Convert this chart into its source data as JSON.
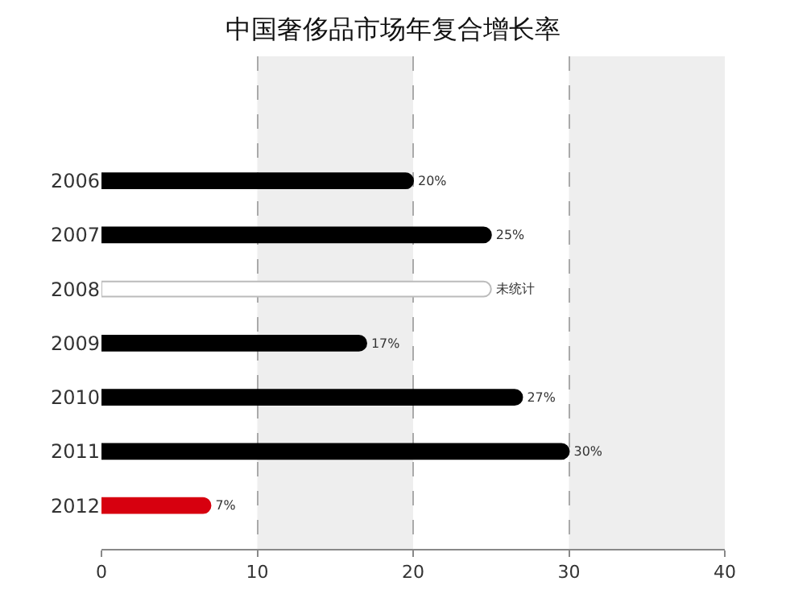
{
  "chart_data": {
    "type": "bar",
    "orientation": "horizontal",
    "title": "中国奢侈品市场年复合增长率",
    "categories": [
      "2006",
      "2007",
      "2008",
      "2009",
      "2010",
      "2011",
      "2012"
    ],
    "values": [
      20,
      25,
      25,
      17,
      27,
      30,
      7
    ],
    "colors": [
      "#000000",
      "#000000",
      "#ffffff",
      "#000000",
      "#000000",
      "#000000",
      "#d7000f"
    ],
    "value_labels": [
      "20%",
      "25%",
      "未统计",
      "17%",
      "27%",
      "30%",
      "7%"
    ],
    "xlim": [
      0,
      40
    ],
    "xticks": [
      0,
      10,
      20,
      30,
      40
    ],
    "grid": "x",
    "legend": false,
    "bands": [
      {
        "axis": "x",
        "from": 10,
        "to": 20,
        "color": "#eeeeee"
      },
      {
        "axis": "x",
        "from": 30,
        "to": 40,
        "color": "#eeeeee"
      }
    ]
  }
}
